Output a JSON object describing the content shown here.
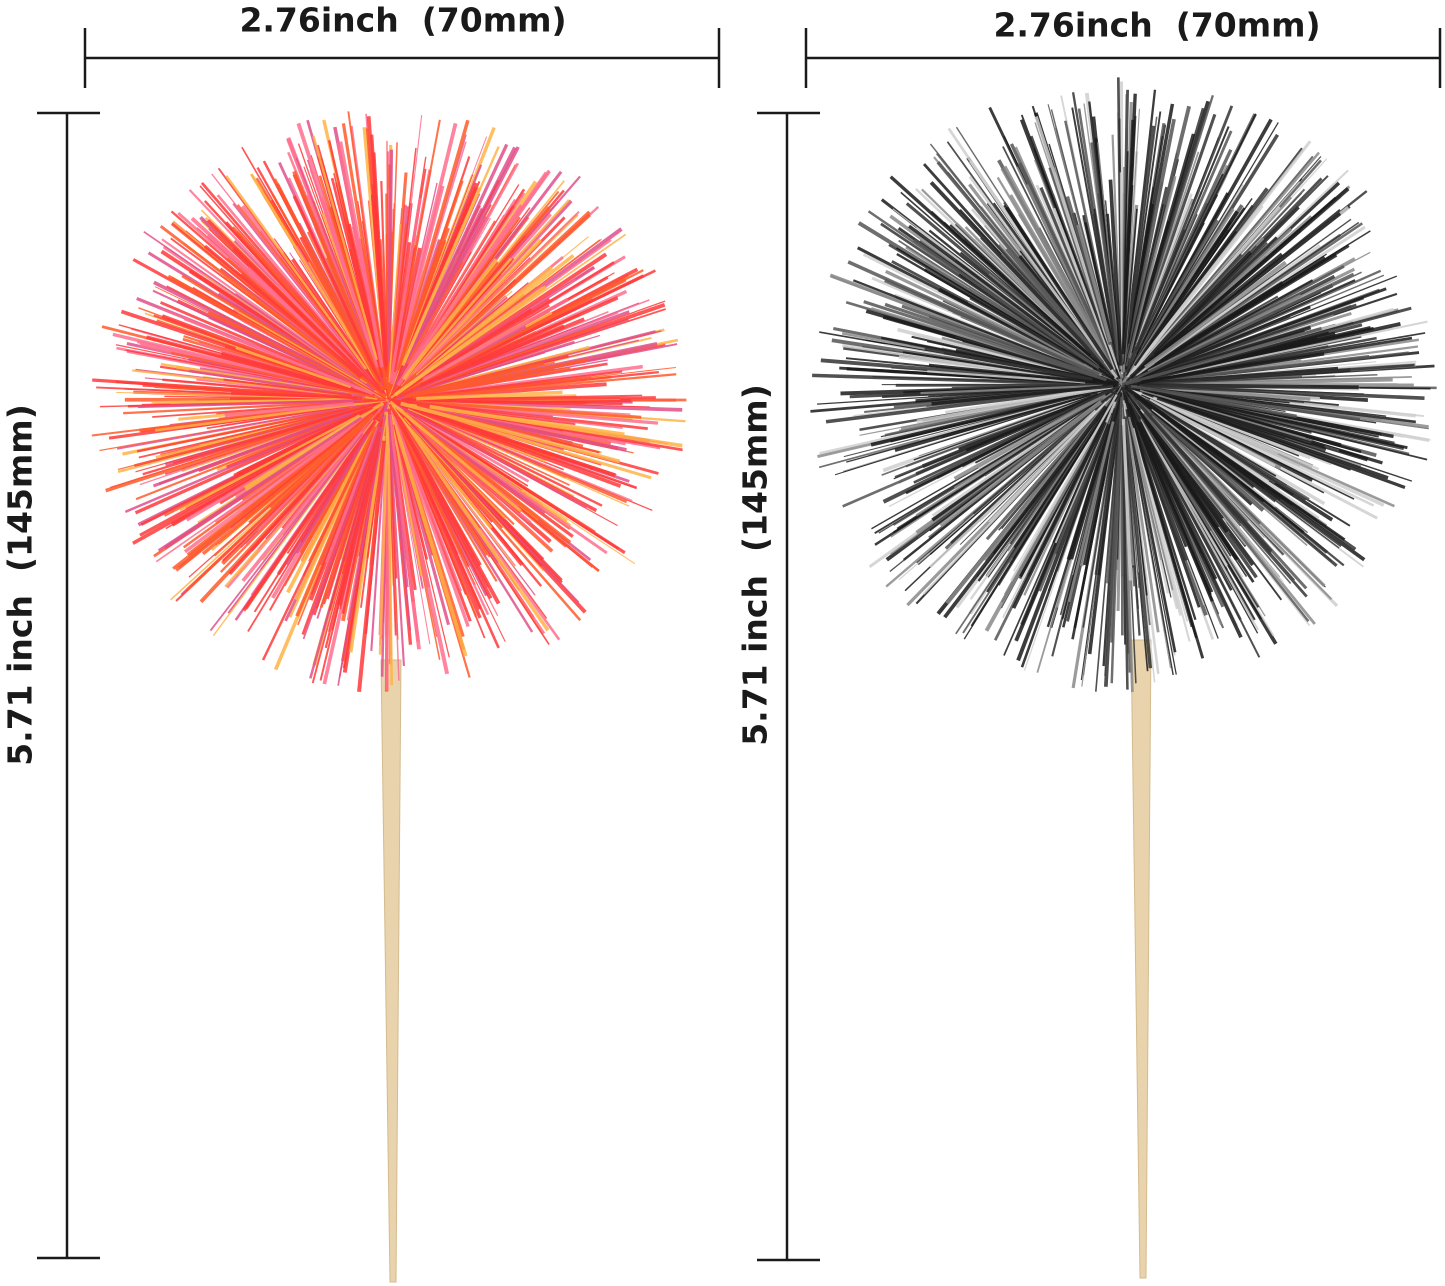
{
  "dimensions": {
    "left_width": "2.76inch  (70mm)",
    "right_width": "2.76inch  (70mm)",
    "left_height": "5.71 inch  (145mm)",
    "right_height": "5.71 inch  (145mm)"
  },
  "products": [
    {
      "name": "iridescent red pom-pom cupcake topper",
      "color": "#ff3a3a"
    },
    {
      "name": "black pom-pom cupcake topper",
      "color": "#1a1a1a"
    }
  ],
  "colors": {
    "line": "#1a1a1a",
    "stick": "#e8d3ad",
    "red": "#ff3a3a",
    "pink": "#ff6f8e",
    "black": "#1a1a1a"
  }
}
